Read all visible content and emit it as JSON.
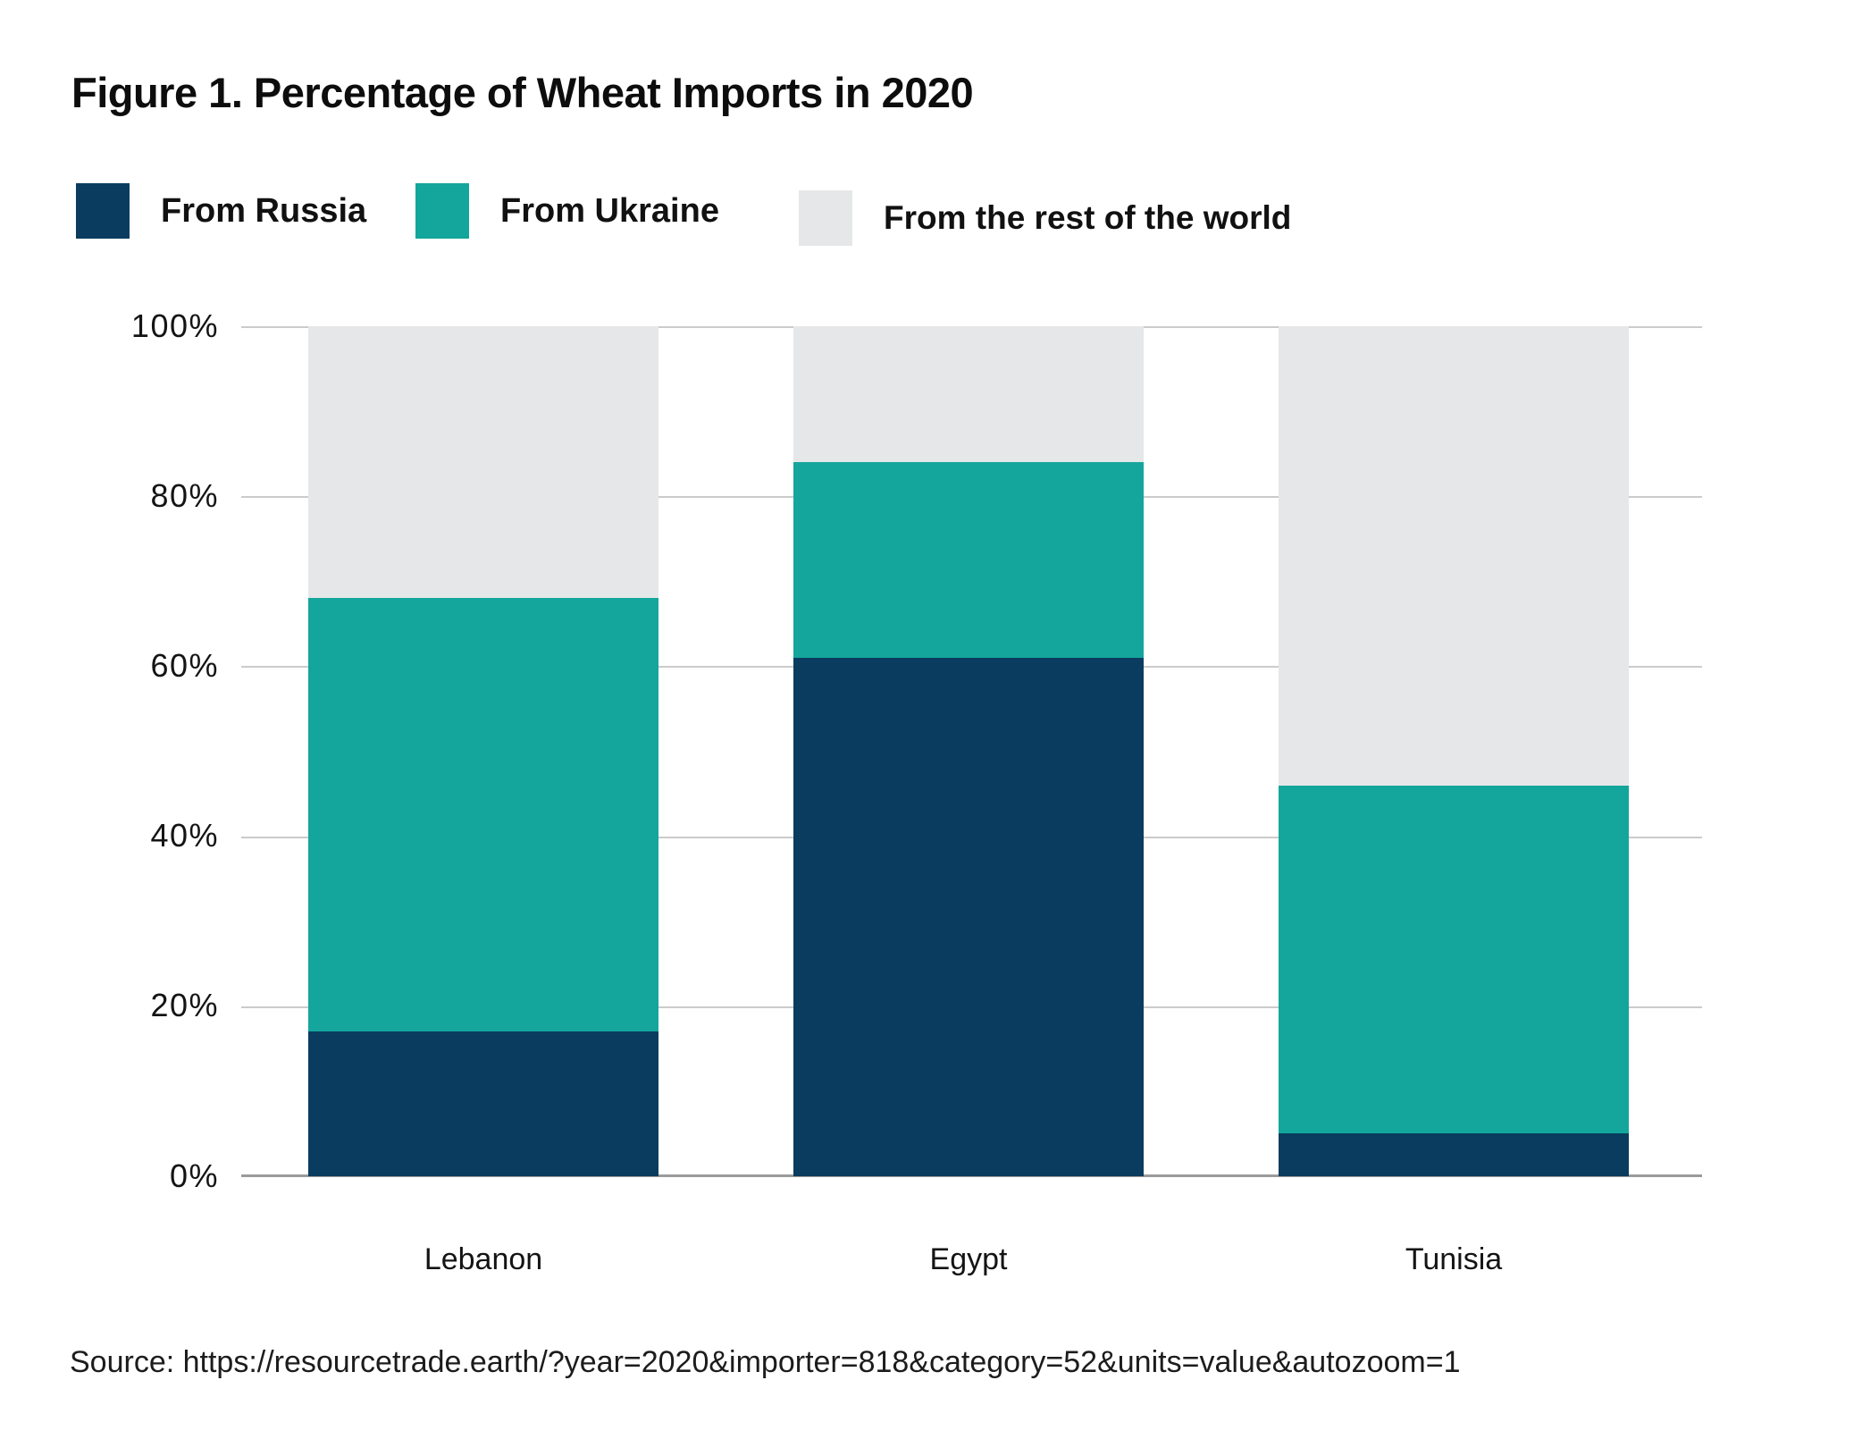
{
  "title": "Figure 1. Percentage of Wheat Imports in 2020",
  "legend": [
    {
      "label": "From Russia",
      "color": "#0a3c5f"
    },
    {
      "label": "From Ukraine",
      "color": "#14a69c"
    },
    {
      "label": "From the rest of the world",
      "color": "#e6e7e8"
    }
  ],
  "chart_data": {
    "type": "bar",
    "stacked": true,
    "units": "percent",
    "categories": [
      "Lebanon",
      "Egypt",
      "Tunisia"
    ],
    "series": [
      {
        "name": "From Russia",
        "color": "#0a3c5f",
        "values": [
          17,
          61,
          5
        ]
      },
      {
        "name": "From Ukraine",
        "color": "#14a69c",
        "values": [
          51,
          23,
          41
        ]
      },
      {
        "name": "From the rest of the world",
        "color": "#e6e7e8",
        "values": [
          32,
          16,
          54
        ]
      }
    ],
    "title": "Figure 1. Percentage of Wheat Imports in 2020",
    "xlabel": "",
    "ylabel": "",
    "ylim": [
      0,
      100
    ],
    "y_tick_values": [
      100,
      80,
      60,
      40,
      20,
      0
    ],
    "y_tick_labels": [
      "100%",
      "80%",
      "60%",
      "40%",
      "20%",
      "0%"
    ],
    "grid": true,
    "legend_position": "top"
  },
  "source": "Source: https://resourcetrade.earth/?year=2020&importer=818&category=52&units=value&autozoom=1"
}
